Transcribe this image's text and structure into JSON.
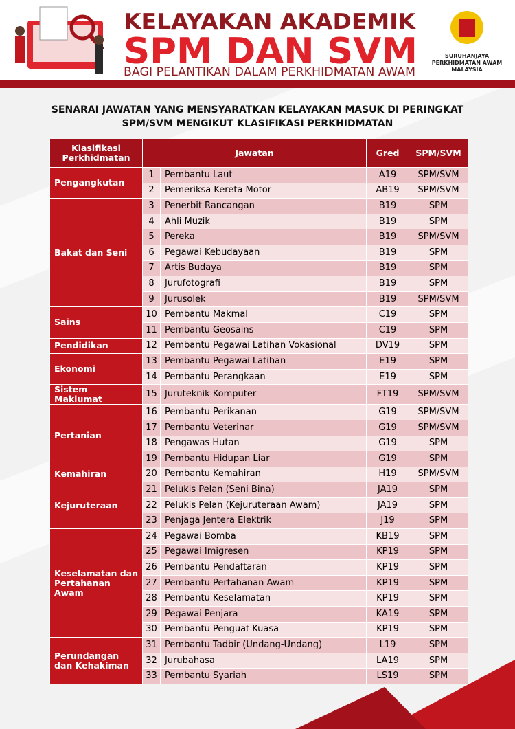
{
  "header": {
    "title_line1": "KELAYAKAN AKADEMIK",
    "title_line2": "SPM DAN SVM",
    "title_line3": "BAGI PELANTIKAN DALAM PERKHIDMATAN AWAM",
    "logo_text": [
      "SURUHANJAYA",
      "PERKHIDMATAN AWAM",
      "MALAYSIA"
    ]
  },
  "subtitle": [
    "SENARAI JAWATAN YANG MENSYARATKAN KELAYAKAN MASUK DI PERINGKAT",
    "SPM/SVM MENGIKUT KLASIFIKASI PERKHIDMATAN"
  ],
  "table": {
    "columns": [
      "Klasifikasi Perkhidmatan",
      "Jawatan",
      "Gred",
      "SPM/SVM"
    ],
    "groups": [
      {
        "name": "Pengangkutan",
        "rows": [
          [
            1,
            "Pembantu Laut",
            "A19",
            "SPM/SVM"
          ],
          [
            2,
            "Pemeriksa Kereta Motor",
            "AB19",
            "SPM/SVM"
          ]
        ]
      },
      {
        "name": "Bakat dan Seni",
        "rows": [
          [
            3,
            "Penerbit Rancangan",
            "B19",
            "SPM"
          ],
          [
            4,
            "Ahli Muzik",
            "B19",
            "SPM"
          ],
          [
            5,
            "Pereka",
            "B19",
            "SPM/SVM"
          ],
          [
            6,
            "Pegawai Kebudayaan",
            "B19",
            "SPM"
          ],
          [
            7,
            "Artis Budaya",
            "B19",
            "SPM"
          ],
          [
            8,
            "Jurufotografi",
            "B19",
            "SPM"
          ],
          [
            9,
            "Jurusolek",
            "B19",
            "SPM/SVM"
          ]
        ]
      },
      {
        "name": "Sains",
        "rows": [
          [
            10,
            "Pembantu Makmal",
            "C19",
            "SPM"
          ],
          [
            11,
            "Pembantu Geosains",
            "C19",
            "SPM"
          ]
        ]
      },
      {
        "name": "Pendidikan",
        "rows": [
          [
            12,
            "Pembantu Pegawai Latihan Vokasional",
            "DV19",
            "SPM"
          ]
        ]
      },
      {
        "name": "Ekonomi",
        "rows": [
          [
            13,
            "Pembantu Pegawai Latihan",
            "E19",
            "SPM"
          ],
          [
            14,
            "Pembantu Perangkaan",
            "E19",
            "SPM"
          ]
        ]
      },
      {
        "name": "Sistem Maklumat",
        "rows": [
          [
            15,
            "Juruteknik Komputer",
            "FT19",
            "SPM/SVM"
          ]
        ]
      },
      {
        "name": "Pertanian",
        "rows": [
          [
            16,
            "Pembantu Perikanan",
            "G19",
            "SPM/SVM"
          ],
          [
            17,
            "Pembantu Veterinar",
            "G19",
            "SPM/SVM"
          ],
          [
            18,
            "Pengawas Hutan",
            "G19",
            "SPM"
          ],
          [
            19,
            "Pembantu Hidupan Liar",
            "G19",
            "SPM"
          ]
        ]
      },
      {
        "name": "Kemahiran",
        "rows": [
          [
            20,
            "Pembantu Kemahiran",
            "H19",
            "SPM/SVM"
          ]
        ]
      },
      {
        "name": "Kejuruteraan",
        "rows": [
          [
            21,
            "Pelukis Pelan (Seni Bina)",
            "JA19",
            "SPM"
          ],
          [
            22,
            "Pelukis Pelan (Kejuruteraan Awam)",
            "JA19",
            "SPM"
          ],
          [
            23,
            "Penjaga Jentera Elektrik",
            "J19",
            "SPM"
          ]
        ]
      },
      {
        "name": "Keselamatan dan Pertahanan Awam",
        "rows": [
          [
            24,
            "Pegawai Bomba",
            "KB19",
            "SPM"
          ],
          [
            25,
            "Pegawai Imigresen",
            "KP19",
            "SPM"
          ],
          [
            26,
            "Pembantu Pendaftaran",
            "KP19",
            "SPM"
          ],
          [
            27,
            "Pembantu Pertahanan Awam",
            "KP19",
            "SPM"
          ],
          [
            28,
            "Pembantu Keselamatan",
            "KP19",
            "SPM"
          ],
          [
            29,
            "Pegawai Penjara",
            "KA19",
            "SPM"
          ],
          [
            30,
            "Pembantu Penguat Kuasa",
            "KP19",
            "SPM"
          ]
        ]
      },
      {
        "name": "Perundangan dan Kehakiman",
        "rows": [
          [
            31,
            "Pembantu Tadbir (Undang-Undang)",
            "L19",
            "SPM"
          ],
          [
            32,
            "Jurubahasa",
            "LA19",
            "SPM"
          ],
          [
            33,
            "Pembantu Syariah",
            "LS19",
            "SPM"
          ]
        ]
      }
    ]
  }
}
